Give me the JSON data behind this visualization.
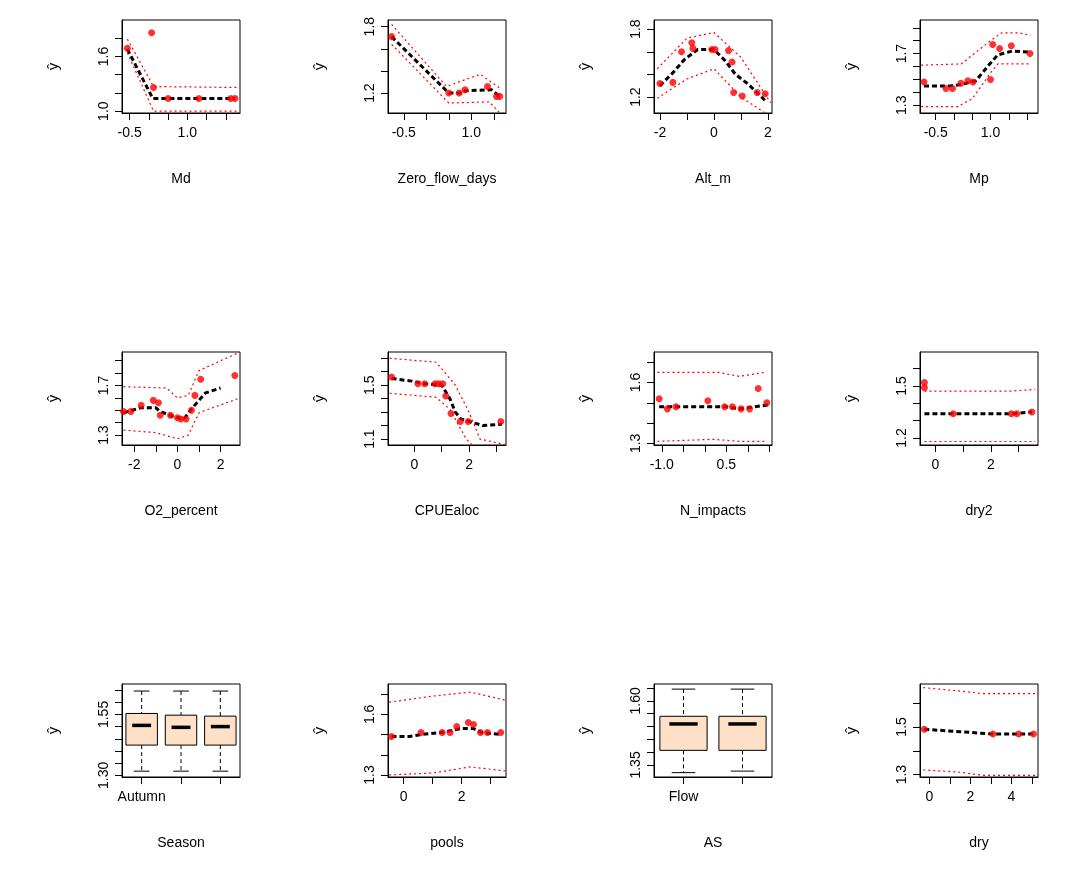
{
  "chart_data": [
    {
      "type": "line",
      "xlabel": "Md",
      "ylabel": "ŷ",
      "xlim": [
        -0.7,
        2.37
      ],
      "ylim": [
        0.98,
        2.0
      ],
      "xticks": [
        -0.5,
        {
          "value": 0,
          "label": null
        },
        {
          "value": 0.5,
          "label": null
        },
        {
          "value": 1,
          "label": "1.0"
        },
        {
          "value": 1.5,
          "label": null
        },
        {
          "value": 2,
          "label": null
        }
      ],
      "yticks": [
        {
          "value": 1,
          "label": "1.0"
        },
        {
          "value": 1.2,
          "label": null
        },
        {
          "value": 1.4,
          "label": null
        },
        1.6,
        {
          "value": 1.8,
          "label": null
        }
      ],
      "series": [
        {
          "type": "line",
          "color": "#000000",
          "line_style": "dashed",
          "x": [
            -0.56,
            0.1,
            0.5,
            1.3,
            2.24
          ],
          "values": [
            1.68,
            1.14,
            1.14,
            1.14,
            1.14
          ]
        },
        {
          "type": "line",
          "color": "#ff0000",
          "line_style": "dotted",
          "x": [
            -0.56,
            0.12,
            2.3
          ],
          "values": [
            1.79,
            1.27,
            1.26
          ]
        },
        {
          "type": "line",
          "color": "#ff0000",
          "line_style": "dotted",
          "x": [
            -0.56,
            0.12,
            2.3
          ],
          "values": [
            1.64,
            1.0,
            1.0
          ]
        },
        {
          "type": "scatter",
          "color": "#ff0000",
          "marker": "circle",
          "x": [
            -0.56,
            0.07,
            0.12,
            0.5,
            1.3,
            2.13,
            2.24
          ],
          "values": [
            1.69,
            1.86,
            1.26,
            1.14,
            1.14,
            1.14,
            1.14
          ]
        }
      ]
    },
    {
      "type": "line",
      "xlabel": "Zero_flow_days",
      "ylabel": "ŷ",
      "xlim": [
        -0.85,
        1.77
      ],
      "ylim": [
        1.02,
        1.86
      ],
      "xticks": [
        -0.5,
        {
          "value": 0,
          "label": null
        },
        {
          "value": 0.5,
          "label": null
        },
        {
          "value": 1,
          "label": "1.0"
        },
        {
          "value": 1.5,
          "label": null
        }
      ],
      "yticks": [
        1.2,
        {
          "value": 1.4,
          "label": null
        },
        {
          "value": 1.6,
          "label": null
        },
        1.8
      ],
      "series": [
        {
          "type": "line",
          "color": "#000000",
          "line_style": "dashed",
          "x": [
            -0.77,
            0.5,
            0.8,
            0.86,
            1.45,
            1.63
          ],
          "values": [
            1.71,
            1.2,
            1.2,
            1.22,
            1.23,
            1.17
          ]
        },
        {
          "type": "line",
          "color": "#ff0000",
          "line_style": "dotted",
          "x": [
            -0.77,
            0.45,
            1.2,
            1.65
          ],
          "values": [
            1.82,
            1.26,
            1.37,
            1.24
          ]
        },
        {
          "type": "line",
          "color": "#ff0000",
          "line_style": "dotted",
          "x": [
            -0.77,
            0.5,
            1.4,
            1.63
          ],
          "values": [
            1.64,
            1.11,
            1.12,
            1.02
          ]
        },
        {
          "type": "scatter",
          "color": "#ff0000",
          "marker": "circle",
          "x": [
            -0.77,
            0.5,
            0.73,
            0.86,
            1.36,
            1.56,
            1.63
          ],
          "values": [
            1.71,
            1.2,
            1.2,
            1.23,
            1.26,
            1.17,
            1.17
          ]
        }
      ]
    },
    {
      "type": "line",
      "xlabel": "Alt_m",
      "ylabel": "ŷ",
      "xlim": [
        -2.22,
        2.15
      ],
      "ylim": [
        1.06,
        1.88
      ],
      "xticks": [
        -2,
        {
          "value": -1,
          "label": null
        },
        0,
        {
          "value": 1,
          "label": null
        },
        2
      ],
      "yticks": [
        1.2,
        {
          "value": 1.4,
          "label": null
        },
        {
          "value": 1.6,
          "label": null
        },
        1.8
      ],
      "series": [
        {
          "type": "line",
          "color": "#000000",
          "line_style": "dashed",
          "x": [
            -2,
            -1.5,
            -1.1,
            -0.6,
            0,
            0.42,
            0.8,
            1.24,
            1.94
          ],
          "values": [
            1.3,
            1.42,
            1.53,
            1.62,
            1.62,
            1.52,
            1.4,
            1.32,
            1.16
          ]
        },
        {
          "type": "line",
          "color": "#ff0000",
          "line_style": "dotted",
          "x": [
            -2.1,
            -1,
            0,
            1,
            2.1
          ],
          "values": [
            1.45,
            1.72,
            1.77,
            1.55,
            1.15
          ]
        },
        {
          "type": "line",
          "color": "#ff0000",
          "line_style": "dotted",
          "x": [
            -2.1,
            -1,
            0,
            1,
            1.9
          ],
          "values": [
            1.19,
            1.36,
            1.45,
            1.2,
            1.06
          ]
        },
        {
          "type": "scatter",
          "color": "#ff0000",
          "marker": "circle",
          "x": [
            -2,
            -1.52,
            -1.2,
            -0.82,
            -0.78,
            -0.08,
            0.04,
            0.54,
            0.67,
            0.73,
            1.05,
            1.6,
            1.9
          ],
          "values": [
            1.32,
            1.33,
            1.6,
            1.68,
            1.63,
            1.62,
            1.62,
            1.61,
            1.51,
            1.24,
            1.21,
            1.24,
            1.23
          ]
        }
      ]
    },
    {
      "type": "line",
      "xlabel": "Mp",
      "ylabel": "ŷ",
      "xlim": [
        -0.93,
        2.3
      ],
      "ylim": [
        1.24,
        1.96
      ],
      "xticks": [
        -0.5,
        {
          "value": 0,
          "label": null
        },
        {
          "value": 0.5,
          "label": null
        },
        {
          "value": 1,
          "label": "1.0"
        },
        {
          "value": 1.5,
          "label": null
        },
        {
          "value": 2,
          "label": null
        }
      ],
      "yticks": [
        1.3,
        {
          "value": 1.4,
          "label": null
        },
        {
          "value": 1.5,
          "label": null
        },
        {
          "value": 1.6,
          "label": null
        },
        1.7,
        {
          "value": 1.8,
          "label": null
        },
        {
          "value": 1.9,
          "label": null
        }
      ],
      "series": [
        {
          "type": "line",
          "color": "#000000",
          "line_style": "dashed",
          "x": [
            -0.82,
            -0.1,
            0.2,
            0.6,
            0.95,
            1.2,
            1.6,
            2.1
          ],
          "values": [
            1.45,
            1.45,
            1.46,
            1.49,
            1.61,
            1.69,
            1.72,
            1.71
          ]
        },
        {
          "type": "line",
          "color": "#ff0000",
          "line_style": "dotted",
          "x": [
            -0.9,
            0.2,
            1.0,
            1.3,
            1.8,
            2.1
          ],
          "values": [
            1.61,
            1.62,
            1.8,
            1.86,
            1.86,
            1.84
          ]
        },
        {
          "type": "line",
          "color": "#ff0000",
          "line_style": "dotted",
          "x": [
            -0.9,
            0.1,
            0.5,
            1.0,
            1.2,
            2.1
          ],
          "values": [
            1.29,
            1.29,
            1.35,
            1.55,
            1.62,
            1.62
          ]
        },
        {
          "type": "scatter",
          "color": "#ff0000",
          "marker": "circle",
          "x": [
            -0.82,
            -0.22,
            -0.04,
            0.19,
            0.38,
            0.52,
            1.0,
            1.06,
            1.25,
            1.57,
            2.08
          ],
          "values": [
            1.48,
            1.43,
            1.43,
            1.47,
            1.49,
            1.48,
            1.5,
            1.77,
            1.74,
            1.76,
            1.7
          ]
        }
      ]
    },
    {
      "type": "line",
      "xlabel": "O2_percent",
      "ylabel": "ŷ",
      "xlim": [
        -2.57,
        2.9
      ],
      "ylim": [
        1.22,
        1.97
      ],
      "xticks": [
        -2,
        {
          "value": -1,
          "label": null
        },
        0,
        {
          "value": 1,
          "label": null
        },
        2
      ],
      "yticks": [
        1.3,
        {
          "value": 1.4,
          "label": null
        },
        {
          "value": 1.5,
          "label": null
        },
        {
          "value": 1.6,
          "label": null
        },
        1.7,
        {
          "value": 1.8,
          "label": null
        },
        {
          "value": 1.9,
          "label": null
        }
      ],
      "series": [
        {
          "type": "line",
          "color": "#000000",
          "line_style": "dashed",
          "x": [
            -2.5,
            -1.7,
            -1.0,
            -0.8,
            -0.2,
            0.3,
            0.7,
            1.3,
            2.0
          ],
          "values": [
            1.48,
            1.52,
            1.52,
            1.49,
            1.45,
            1.43,
            1.52,
            1.64,
            1.68
          ]
        },
        {
          "type": "line",
          "color": "#ff0000",
          "line_style": "dotted",
          "x": [
            -2.5,
            -0.5,
            0,
            0.5,
            1.0,
            2.9
          ],
          "values": [
            1.69,
            1.68,
            1.6,
            1.62,
            1.82,
            1.97
          ]
        },
        {
          "type": "line",
          "color": "#ff0000",
          "line_style": "dotted",
          "x": [
            -2.5,
            -1.0,
            0,
            0.5,
            1.0,
            2.9
          ],
          "values": [
            1.34,
            1.32,
            1.27,
            1.3,
            1.48,
            1.6
          ]
        },
        {
          "type": "scatter",
          "color": "#ff0000",
          "marker": "circle",
          "x": [
            -2.5,
            -2.16,
            -1.68,
            -1.12,
            -0.88,
            -0.8,
            -0.32,
            0,
            0.16,
            0.4,
            0.65,
            0.81,
            1.08,
            2.66
          ],
          "values": [
            1.49,
            1.49,
            1.54,
            1.58,
            1.56,
            1.46,
            1.46,
            1.44,
            1.43,
            1.43,
            1.5,
            1.62,
            1.75,
            1.78
          ]
        }
      ]
    },
    {
      "type": "line",
      "xlabel": "CPUEaloc",
      "ylabel": "ŷ",
      "xlim": [
        -0.96,
        3.35
      ],
      "ylim": [
        1.056,
        1.746
      ],
      "xticks": [
        0,
        {
          "value": 1,
          "label": null
        },
        2,
        {
          "value": 3,
          "label": null
        }
      ],
      "yticks": [
        1.1,
        {
          "value": 1.2,
          "label": null
        },
        {
          "value": 1.3,
          "label": null
        },
        {
          "value": 1.4,
          "label": null
        },
        1.5,
        {
          "value": 1.6,
          "label": null
        },
        {
          "value": 1.7,
          "label": null
        }
      ],
      "series": [
        {
          "type": "line",
          "color": "#000000",
          "line_style": "dashed",
          "x": [
            -0.83,
            -0.1,
            0.4,
            1.0,
            1.3,
            1.5,
            1.7,
            2.5,
            3.2
          ],
          "values": [
            1.55,
            1.53,
            1.51,
            1.5,
            1.4,
            1.3,
            1.25,
            1.2,
            1.21
          ]
        },
        {
          "type": "line",
          "color": "#ff0000",
          "line_style": "dotted",
          "x": [
            -0.9,
            0.8,
            1.5,
            2.0,
            2.4,
            3.3
          ],
          "values": [
            1.7,
            1.67,
            1.5,
            1.3,
            1.1,
            1.06
          ]
        },
        {
          "type": "line",
          "color": "#ff0000",
          "line_style": "dotted",
          "x": [
            -0.9,
            0.8,
            1.3,
            1.9,
            2.1
          ],
          "values": [
            1.44,
            1.41,
            1.32,
            1.1,
            1.06
          ]
        },
        {
          "type": "scatter",
          "color": "#ff0000",
          "marker": "circle",
          "x": [
            -0.83,
            0.13,
            0.38,
            0.76,
            0.89,
            1.04,
            1.15,
            1.34,
            1.68,
            1.97,
            3.16
          ],
          "values": [
            1.56,
            1.51,
            1.51,
            1.51,
            1.51,
            1.51,
            1.42,
            1.29,
            1.23,
            1.23,
            1.23
          ]
        }
      ]
    },
    {
      "type": "line",
      "xlabel": "N_impacts",
      "ylabel": "ŷ",
      "xlim": [
        -1.18,
        1.56
      ],
      "ylim": [
        1.292,
        1.75
      ],
      "xticks": [
        {
          "value": -1,
          "label": "-1.0"
        },
        {
          "value": -0.5,
          "label": null
        },
        {
          "value": 0,
          "label": null
        },
        0.5,
        {
          "value": 1,
          "label": null
        },
        {
          "value": 1.5,
          "label": null
        }
      ],
      "yticks": [
        1.3,
        {
          "value": 1.4,
          "label": null
        },
        {
          "value": 1.5,
          "label": null
        },
        1.6,
        {
          "value": 1.7,
          "label": null
        }
      ],
      "series": [
        {
          "type": "line",
          "color": "#000000",
          "line_style": "dashed",
          "x": [
            -1.06,
            -0.6,
            0.07,
            0.5,
            0.8,
            1.5
          ],
          "values": [
            1.48,
            1.48,
            1.48,
            1.48,
            1.47,
            1.49
          ]
        },
        {
          "type": "line",
          "color": "#ff0000",
          "line_style": "dotted",
          "x": [
            -1.1,
            0.3,
            0.8,
            1.4
          ],
          "values": [
            1.65,
            1.65,
            1.63,
            1.65
          ]
        },
        {
          "type": "line",
          "color": "#ff0000",
          "line_style": "dotted",
          "x": [
            -1.1,
            0.2,
            0.8,
            1.4
          ],
          "values": [
            1.31,
            1.32,
            1.31,
            1.31
          ]
        },
        {
          "type": "scatter",
          "color": "#ff0000",
          "marker": "circle",
          "x": [
            -1.06,
            -0.87,
            -0.67,
            0.07,
            0.46,
            0.64,
            0.84,
            1.04,
            1.24,
            1.44
          ],
          "values": [
            1.52,
            1.47,
            1.48,
            1.51,
            1.48,
            1.48,
            1.47,
            1.47,
            1.57,
            1.5
          ]
        }
      ]
    },
    {
      "type": "line",
      "xlabel": "dry2",
      "ylabel": "ŷ",
      "xlim": [
        -0.56,
        3.7
      ],
      "ylim": [
        1.16,
        1.695
      ],
      "xticks": [
        0,
        {
          "value": 1,
          "label": null
        },
        2,
        {
          "value": 3,
          "label": null
        }
      ],
      "yticks": [
        1.2,
        {
          "value": 1.3,
          "label": null
        },
        {
          "value": 1.4,
          "label": null
        },
        1.5,
        {
          "value": 1.6,
          "label": null
        }
      ],
      "series": [
        {
          "type": "line",
          "color": "#000000",
          "line_style": "dashed",
          "x": [
            -0.4,
            0.64,
            2.74,
            3.48
          ],
          "values": [
            1.34,
            1.34,
            1.34,
            1.35
          ]
        },
        {
          "type": "line",
          "color": "#ff0000",
          "line_style": "dotted",
          "x": [
            -0.4,
            2.7,
            3.6
          ],
          "values": [
            1.47,
            1.47,
            1.48
          ]
        },
        {
          "type": "line",
          "color": "#ff0000",
          "line_style": "dotted",
          "x": [
            -0.4,
            2.7,
            3.6
          ],
          "values": [
            1.18,
            1.18,
            1.18
          ]
        },
        {
          "type": "scatter",
          "color": "#ff0000",
          "marker": "circle",
          "x": [
            -0.4,
            -0.4,
            0.64,
            2.74,
            2.93,
            3.48
          ],
          "values": [
            1.52,
            1.49,
            1.34,
            1.34,
            1.34,
            1.35
          ]
        }
      ]
    },
    {
      "type": "box",
      "xlabel": "Season",
      "ylabel": "ŷ",
      "ylim": [
        1.293,
        1.675
      ],
      "color": "#fde0c5",
      "categories": [
        "Autumn",
        null,
        null
      ],
      "yticks": [
        {
          "value": 1.3,
          "label": "1.30"
        },
        {
          "value": 1.35,
          "label": null
        },
        {
          "value": 1.4,
          "label": null
        },
        {
          "value": 1.45,
          "label": null
        },
        {
          "value": 1.5,
          "label": null
        },
        1.55,
        {
          "value": 1.6,
          "label": null
        },
        {
          "value": 1.65,
          "label": null
        }
      ],
      "boxes": [
        {
          "low": 1.317,
          "q1": 1.424,
          "median": 1.505,
          "q3": 1.554,
          "high": 1.646
        },
        {
          "low": 1.317,
          "q1": 1.424,
          "median": 1.497,
          "q3": 1.547,
          "high": 1.646
        },
        {
          "low": 1.317,
          "q1": 1.424,
          "median": 1.5,
          "q3": 1.543,
          "high": 1.646
        }
      ]
    },
    {
      "type": "line",
      "xlabel": "pools",
      "ylabel": "ŷ",
      "xlim": [
        -0.54,
        3.53
      ],
      "ylim": [
        1.29,
        1.75
      ],
      "xticks": [
        0,
        {
          "value": 1,
          "label": null
        },
        2,
        {
          "value": 3,
          "label": null
        }
      ],
      "yticks": [
        1.3,
        {
          "value": 1.4,
          "label": null
        },
        {
          "value": 1.5,
          "label": null
        },
        1.6,
        {
          "value": 1.7,
          "label": null
        }
      ],
      "series": [
        {
          "type": "line",
          "color": "#000000",
          "line_style": "dashed",
          "x": [
            -0.42,
            0.2,
            0.6,
            1.3,
            2.0,
            2.4,
            2.7,
            3.35
          ],
          "values": [
            1.49,
            1.49,
            1.5,
            1.51,
            1.53,
            1.53,
            1.51,
            1.5
          ]
        },
        {
          "type": "line",
          "color": "#ff0000",
          "line_style": "dotted",
          "x": [
            -0.5,
            1.0,
            2.3,
            3.5
          ],
          "values": [
            1.66,
            1.69,
            1.71,
            1.67
          ]
        },
        {
          "type": "line",
          "color": "#ff0000",
          "line_style": "dotted",
          "x": [
            -0.5,
            1.0,
            2.3,
            3.5
          ],
          "values": [
            1.3,
            1.31,
            1.34,
            1.32
          ]
        },
        {
          "type": "scatter",
          "color": "#ff0000",
          "marker": "circle",
          "x": [
            -0.42,
            0.6,
            1.33,
            1.6,
            1.83,
            2.23,
            2.41,
            2.65,
            2.89,
            3.35
          ],
          "values": [
            1.49,
            1.51,
            1.51,
            1.51,
            1.54,
            1.56,
            1.55,
            1.51,
            1.51,
            1.51
          ]
        }
      ]
    },
    {
      "type": "box",
      "xlabel": "AS",
      "ylabel": "ŷ",
      "ylim": [
        1.303,
        1.666
      ],
      "color": "#fde0c5",
      "categories": [
        "Flow",
        null
      ],
      "yticks": [
        1.35,
        {
          "value": 1.4,
          "label": null
        },
        {
          "value": 1.45,
          "label": null
        },
        {
          "value": 1.5,
          "label": null
        },
        {
          "value": 1.55,
          "label": null
        },
        {
          "value": 1.6,
          "label": "1.60"
        },
        {
          "value": 1.65,
          "label": null
        }
      ],
      "boxes": [
        {
          "low": 1.32,
          "q1": 1.407,
          "median": 1.51,
          "q3": 1.54,
          "high": 1.646
        },
        {
          "low": 1.326,
          "q1": 1.407,
          "median": 1.51,
          "q3": 1.54,
          "high": 1.646
        }
      ]
    },
    {
      "type": "line",
      "xlabel": "dry",
      "ylabel": "ŷ",
      "xlim": [
        -0.46,
        5.3
      ],
      "ylim": [
        1.29,
        1.68
      ],
      "xticks": [
        0,
        {
          "value": 1,
          "label": null
        },
        2,
        {
          "value": 3,
          "label": null
        },
        4,
        {
          "value": 5,
          "label": null
        }
      ],
      "yticks": [
        1.3,
        {
          "value": 1.4,
          "label": null
        },
        1.5,
        {
          "value": 1.6,
          "label": null
        }
      ],
      "series": [
        {
          "type": "line",
          "color": "#000000",
          "line_style": "dashed",
          "x": [
            -0.25,
            1.5,
            3.1,
            5.1
          ],
          "values": [
            1.49,
            1.48,
            1.47,
            1.47
          ]
        },
        {
          "type": "line",
          "color": "#ff0000",
          "line_style": "dotted",
          "x": [
            -0.3,
            1.5,
            2.6,
            5.2
          ],
          "values": [
            1.665,
            1.65,
            1.64,
            1.64
          ]
        },
        {
          "type": "line",
          "color": "#ff0000",
          "line_style": "dotted",
          "x": [
            -0.3,
            1.5,
            2.6,
            5.2
          ],
          "values": [
            1.32,
            1.31,
            1.297,
            1.297
          ]
        },
        {
          "type": "scatter",
          "color": "#ff0000",
          "marker": "circle",
          "x": [
            -0.25,
            3.1,
            4.36,
            5.08
          ],
          "values": [
            1.49,
            1.47,
            1.47,
            1.47
          ]
        }
      ]
    }
  ]
}
